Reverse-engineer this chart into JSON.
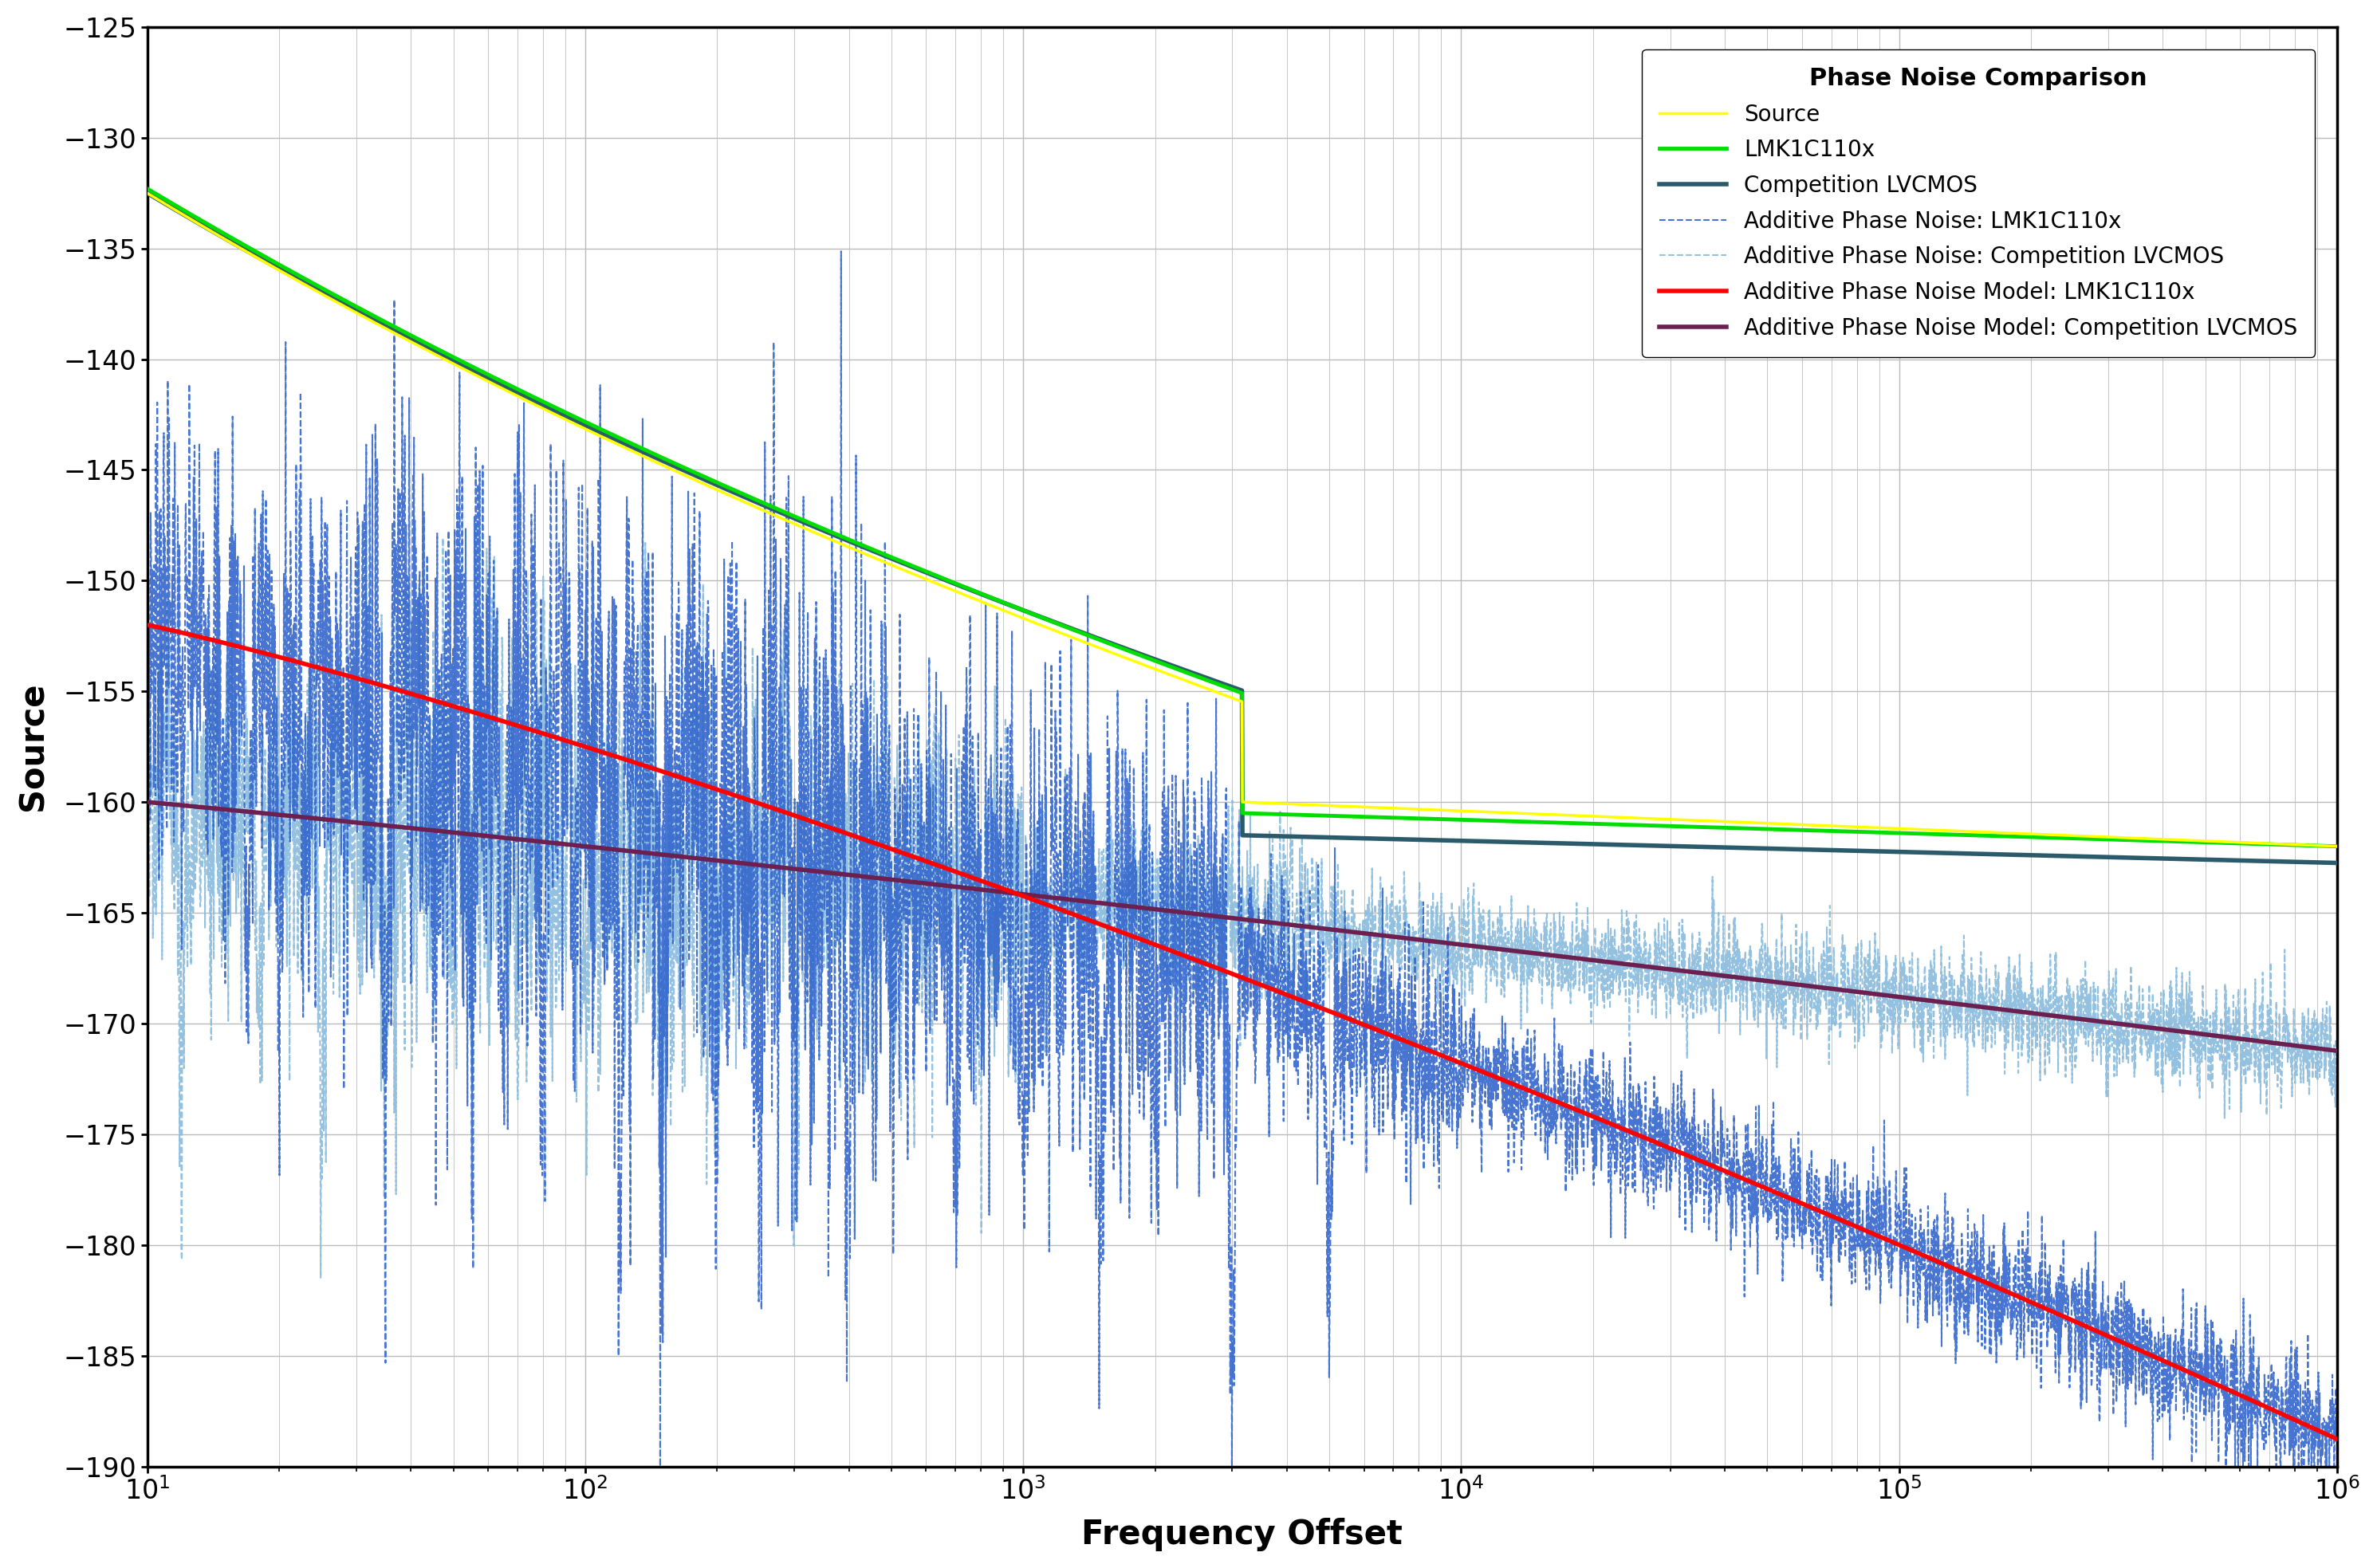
{
  "title": "Phase Noise Comparison",
  "xlabel": "Frequency Offset",
  "ylabel": "Source",
  "xlim_log": [
    1,
    6
  ],
  "ylim": [
    -190,
    -125
  ],
  "yticks": [
    -190,
    -185,
    -180,
    -175,
    -170,
    -165,
    -160,
    -155,
    -150,
    -145,
    -140,
    -135,
    -130,
    -125
  ],
  "colors": {
    "source": "#FFFF00",
    "lmk": "#00DD00",
    "comp": "#2B5B6B",
    "additive_lmk": "#3366CC",
    "additive_comp": "#88BBDD",
    "model_lmk": "#FF0000",
    "model_comp": "#6B2050"
  },
  "legend_title": "Phase Noise Comparison",
  "legend_labels": [
    "Source",
    "LMK1C110x",
    "Competition LVCMOS",
    "Additive Phase Noise: LMK1C110x",
    "Additive Phase Noise: Competition LVCMOS",
    "Additive Phase Noise Model: LMK1C110x",
    "Additive Phase Noise Model: Competition LVCMOS"
  ],
  "bg_color": "#FFFFFF",
  "grid_color": "#BBBBBB"
}
